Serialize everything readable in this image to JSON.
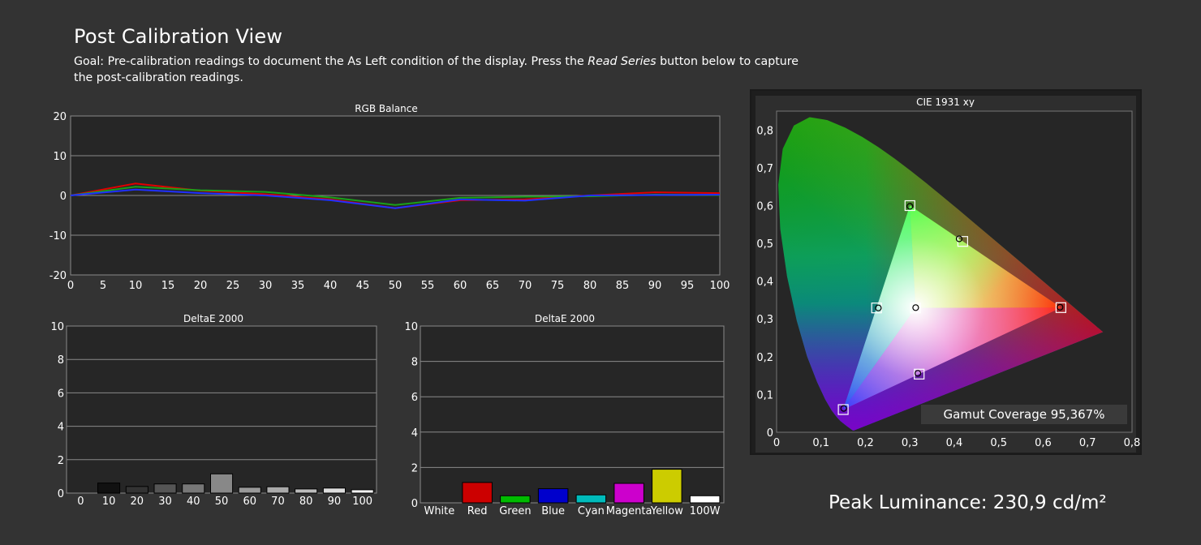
{
  "header": {
    "title": "Post Calibration View",
    "goal_prefix": "Goal: Pre-calibration readings to document the As Left condition of the display. Press the ",
    "goal_emph": "Read Series",
    "goal_suffix": " button below to capture the post-calibration readings."
  },
  "footer": {
    "peak_luminance": "Peak Luminance: 230,9 cd/m²"
  },
  "chart_data": [
    {
      "id": "rgb-balance",
      "type": "line",
      "title": "RGB Balance",
      "x": [
        0,
        10,
        20,
        30,
        40,
        50,
        60,
        70,
        80,
        90,
        100
      ],
      "xticks": [
        "0",
        "5",
        "10",
        "15",
        "20",
        "25",
        "30",
        "35",
        "40",
        "45",
        "50",
        "55",
        "60",
        "65",
        "70",
        "75",
        "80",
        "85",
        "90",
        "95",
        "100"
      ],
      "xlim": [
        0,
        100
      ],
      "ylim": [
        -20,
        20
      ],
      "yticks": [
        "-20",
        "-10",
        "0",
        "10",
        "20"
      ],
      "series": [
        {
          "color": "#e00000",
          "values": [
            0,
            3.0,
            1.2,
            0.3,
            -1.0,
            -3.2,
            -1.2,
            -1.0,
            0,
            0.8,
            0.6
          ]
        },
        {
          "color": "#1aa01a",
          "values": [
            0,
            2.2,
            1.3,
            0.9,
            -0.5,
            -2.4,
            -0.6,
            -0.3,
            -0.2,
            0.2,
            0.1
          ]
        },
        {
          "color": "#2030ff",
          "values": [
            0,
            1.5,
            0.6,
            0.0,
            -1.2,
            -3.2,
            -1.0,
            -1.3,
            0,
            0.1,
            0.2
          ]
        }
      ]
    },
    {
      "id": "deltae-gray",
      "type": "bar",
      "title": "DeltaE 2000",
      "categories": [
        "0",
        "10",
        "20",
        "30",
        "40",
        "50",
        "60",
        "70",
        "80",
        "90",
        "100"
      ],
      "values": [
        0,
        0.6,
        0.4,
        0.55,
        0.55,
        1.15,
        0.35,
        0.38,
        0.25,
        0.3,
        0.2
      ],
      "colors": [
        "#000000",
        "#111111",
        "#333333",
        "#555555",
        "#777777",
        "#888888",
        "#999999",
        "#aaaaaa",
        "#bbbbbb",
        "#dddddd",
        "#f2f2f2"
      ],
      "ylim": [
        0,
        10
      ],
      "yticks": [
        "0",
        "2",
        "4",
        "6",
        "8",
        "10"
      ]
    },
    {
      "id": "deltae-color",
      "type": "bar",
      "title": "DeltaE 2000",
      "categories": [
        "White",
        "Red",
        "Green",
        "Blue",
        "Cyan",
        "Magenta",
        "Yellow",
        "100W"
      ],
      "values": [
        0,
        1.15,
        0.4,
        0.8,
        0.45,
        1.1,
        1.9,
        0.4
      ],
      "colors": [
        "#ffffff",
        "#cc0000",
        "#00bb00",
        "#0000cc",
        "#00bbbb",
        "#cc00cc",
        "#cccc00",
        "#ffffff"
      ],
      "ylim": [
        0,
        10
      ],
      "yticks": [
        "0",
        "2",
        "4",
        "6",
        "8",
        "10"
      ]
    },
    {
      "id": "cie-1931",
      "type": "scatter",
      "title": "CIE 1931 xy",
      "xlim": [
        0,
        0.8
      ],
      "ylim": [
        0,
        0.85
      ],
      "xticks": [
        "0",
        "0,1",
        "0,2",
        "0,3",
        "0,4",
        "0,5",
        "0,6",
        "0,7",
        "0,8"
      ],
      "yticks": [
        "0",
        "0,1",
        "0,2",
        "0,3",
        "0,4",
        "0,5",
        "0,6",
        "0,7",
        "0,8"
      ],
      "gamut_triangle": [
        [
          0.64,
          0.33
        ],
        [
          0.3,
          0.6
        ],
        [
          0.15,
          0.06
        ]
      ],
      "target_points": [
        {
          "name": "Red",
          "x": 0.64,
          "y": 0.33
        },
        {
          "name": "Green",
          "x": 0.3,
          "y": 0.6
        },
        {
          "name": "Blue",
          "x": 0.15,
          "y": 0.06
        },
        {
          "name": "Cyan",
          "x": 0.225,
          "y": 0.329
        },
        {
          "name": "Magenta",
          "x": 0.321,
          "y": 0.154
        },
        {
          "name": "Yellow",
          "x": 0.419,
          "y": 0.505
        },
        {
          "name": "White",
          "x": 0.3127,
          "y": 0.329
        }
      ],
      "measured_points": [
        {
          "name": "Red",
          "x": 0.638,
          "y": 0.331
        },
        {
          "name": "Green",
          "x": 0.3,
          "y": 0.598
        },
        {
          "name": "Blue",
          "x": 0.151,
          "y": 0.063
        },
        {
          "name": "Cyan",
          "x": 0.229,
          "y": 0.329
        },
        {
          "name": "Magenta",
          "x": 0.318,
          "y": 0.156
        },
        {
          "name": "Yellow",
          "x": 0.411,
          "y": 0.512
        },
        {
          "name": "White",
          "x": 0.313,
          "y": 0.33
        }
      ],
      "gamut_coverage": "Gamut Coverage 95,367%"
    }
  ]
}
